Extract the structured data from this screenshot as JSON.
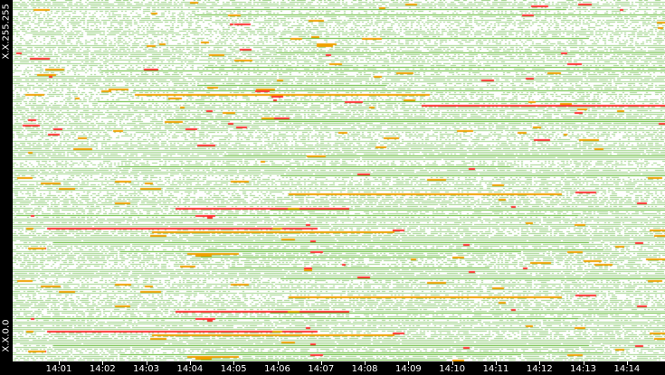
{
  "chart_data": {
    "type": "heatmap",
    "title": "",
    "xlabel": "",
    "ylabel": "",
    "x_ticks": [
      "14:01",
      "14:02",
      "14:03",
      "14:04",
      "14:05",
      "14:06",
      "14:07",
      "14:08",
      "14:09",
      "14:10",
      "14:11",
      "14:12",
      "14:13",
      "14:14"
    ],
    "y_labels": {
      "top": "X.X.255.255",
      "bottom": "X.X.0.0"
    },
    "colors": {
      "background": "#ffffff",
      "low": "#9fd38a",
      "medium": "#5cb82e",
      "high": "#f0a000",
      "very_high": "#ff3030",
      "dark": "#2f6b2f"
    },
    "grid": false,
    "legend": "none"
  }
}
